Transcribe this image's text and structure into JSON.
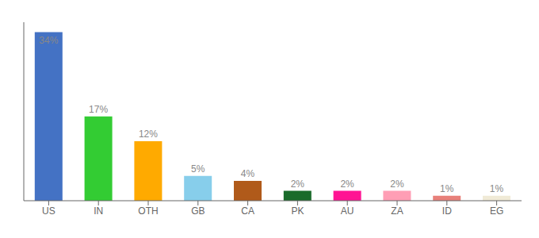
{
  "chart_data": {
    "type": "bar",
    "categories": [
      "US",
      "IN",
      "OTH",
      "GB",
      "CA",
      "PK",
      "AU",
      "ZA",
      "ID",
      "EG"
    ],
    "values": [
      34,
      17,
      12,
      5,
      4,
      2,
      2,
      2,
      1,
      1
    ],
    "value_labels": [
      "34%",
      "17%",
      "12%",
      "5%",
      "4%",
      "2%",
      "2%",
      "2%",
      "1%",
      "1%"
    ],
    "colors": [
      "#4472c4",
      "#33cc33",
      "#ffaa00",
      "#87ceeb",
      "#b05a1a",
      "#1a6b2a",
      "#ff1493",
      "#ff9eb5",
      "#e8807a",
      "#f0ead6"
    ],
    "ylim": [
      0,
      36
    ],
    "data_labels": true,
    "tick_labels": "x"
  }
}
